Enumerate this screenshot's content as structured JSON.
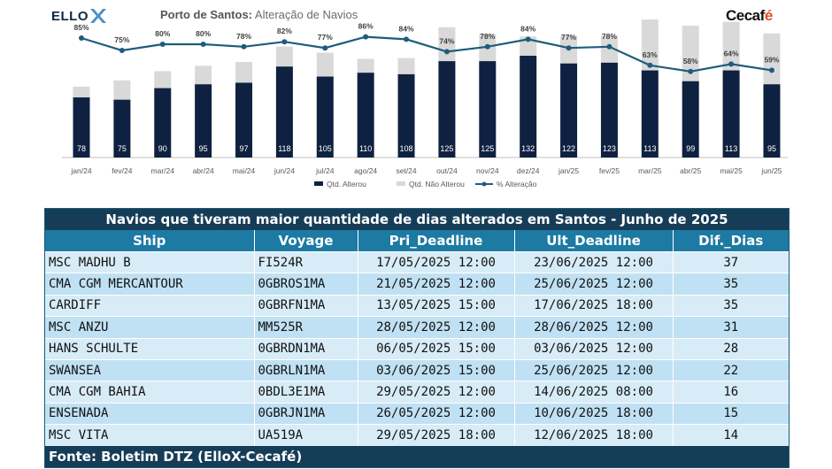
{
  "header": {
    "ellox_logo_text": "ELLO",
    "title_bold": "Porto de Santos:",
    "title_rest": "Alteração de Navios",
    "cecafe_logo_main": "Cecaf",
    "cecafe_logo_accent": "é"
  },
  "colors": {
    "altered": "#0f2141",
    "not_altered": "#d9d9d9",
    "line": "#1f5c7c",
    "table_title_bg": "#163d57",
    "table_header_bg": "#1c7aa3",
    "row_light": "#d7ecf7",
    "row_dark": "#bfe1f3",
    "logo_accent": "#4a90c8"
  },
  "chart_data": {
    "type": "bar",
    "stacked": true,
    "categories": [
      "jan/24",
      "fev/24",
      "mar/24",
      "abr/24",
      "mai/24",
      "jun/24",
      "jul/24",
      "ago/24",
      "set/24",
      "out/24",
      "nov/24",
      "dez/24",
      "jan/25",
      "fev/25",
      "mar/25",
      "abr/25",
      "mai/25",
      "jun/25"
    ],
    "series": [
      {
        "name": "Qtd. Alterou",
        "type": "bar",
        "values": [
          78,
          75,
          90,
          95,
          97,
          118,
          105,
          110,
          108,
          125,
          125,
          132,
          122,
          123,
          113,
          99,
          113,
          95
        ]
      },
      {
        "name": "Qtd. Não Alterou",
        "type": "bar",
        "values": [
          14,
          25,
          22,
          24,
          27,
          26,
          31,
          18,
          21,
          44,
          35,
          25,
          36,
          35,
          66,
          72,
          63,
          66
        ]
      },
      {
        "name": "% Alteração",
        "type": "line",
        "unit": "%",
        "values": [
          85,
          75,
          80,
          80,
          78,
          82,
          77,
          86,
          84,
          74,
          78,
          84,
          77,
          78,
          63,
          58,
          64,
          59
        ]
      }
    ],
    "bar_ylim": [
      0,
      200
    ],
    "line_ylim": [
      0,
      100
    ],
    "legend_position": "bottom",
    "grid": false
  },
  "table": {
    "title": "Navios que tiveram maior quantidade de dias alterados em Santos - Junho de 2025",
    "columns": [
      "Ship",
      "Voyage",
      "Pri_Deadline",
      "Ult_Deadline",
      "Dif._Dias"
    ],
    "rows": [
      [
        "MSC MADHU B",
        "FI524R",
        "17/05/2025 12:00",
        "23/06/2025 12:00",
        "37"
      ],
      [
        "CMA CGM MERCANTOUR",
        "0GBROS1MA",
        "21/05/2025 12:00",
        "25/06/2025 12:00",
        "35"
      ],
      [
        "CARDIFF",
        "0GBRFN1MA",
        "13/05/2025 15:00",
        "17/06/2025 18:00",
        "35"
      ],
      [
        "MSC ANZU",
        "MM525R",
        "28/05/2025 12:00",
        "28/06/2025 12:00",
        "31"
      ],
      [
        "HANS SCHULTE",
        "0GBRDN1MA",
        "06/05/2025 15:00",
        "03/06/2025 12:00",
        "28"
      ],
      [
        "SWANSEA",
        "0GBRLN1MA",
        "03/06/2025 15:00",
        "25/06/2025 12:00",
        "22"
      ],
      [
        "CMA CGM BAHIA",
        "0BDL3E1MA",
        "29/05/2025 12:00",
        "14/06/2025 08:00",
        "16"
      ],
      [
        "ENSENADA",
        "0GBRJN1MA",
        "26/05/2025 12:00",
        "10/06/2025 18:00",
        "15"
      ],
      [
        "MSC VITA",
        "UA519A",
        "29/05/2025 18:00",
        "12/06/2025 18:00",
        "14"
      ]
    ],
    "footer": "Fonte: Boletim DTZ (ElloX-Cecafé)"
  }
}
